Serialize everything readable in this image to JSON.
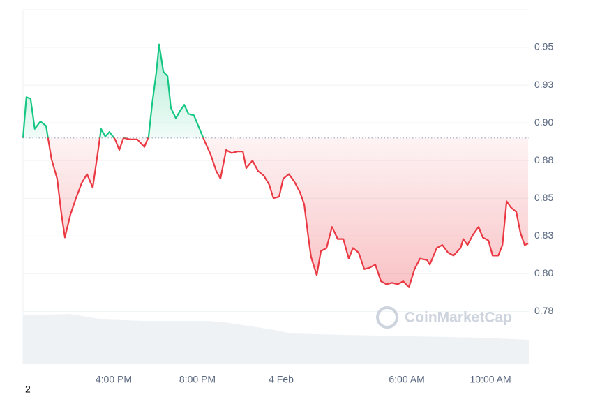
{
  "chart_data": {
    "type": "line",
    "x": [
      11.67,
      11.83,
      12.03,
      12.23,
      12.5,
      12.77,
      13.03,
      13.3,
      13.5,
      13.67,
      13.93,
      14.2,
      14.47,
      14.73,
      15.0,
      15.27,
      15.4,
      15.6,
      15.8,
      16.07,
      16.27,
      16.47,
      16.8,
      17.13,
      17.47,
      17.67,
      17.83,
      18.03,
      18.17,
      18.37,
      18.57,
      18.73,
      18.97,
      19.17,
      19.37,
      19.57,
      19.83,
      20.1,
      20.37,
      20.63,
      20.9,
      21.1,
      21.37,
      21.63,
      21.9,
      22.17,
      22.33,
      22.63,
      22.9,
      23.17,
      23.43,
      23.63,
      23.9,
      24.1,
      24.37,
      24.63,
      24.9,
      25.1,
      25.3,
      25.43,
      25.7,
      25.9,
      26.17,
      26.43,
      26.7,
      26.97,
      27.23,
      27.43,
      27.7,
      27.97,
      28.23,
      28.5,
      28.77,
      29.03,
      29.3,
      29.57,
      29.83,
      30.1,
      30.37,
      30.63,
      30.97,
      31.1,
      31.43,
      31.7,
      31.97,
      32.23,
      32.57,
      32.7,
      32.9,
      33.17,
      33.43,
      33.63,
      33.9,
      34.1,
      34.37,
      34.57,
      34.77,
      34.97,
      35.23,
      35.43,
      35.63,
      35.8
    ],
    "series": [
      {
        "values": [
          0.89,
          0.917,
          0.916,
          0.896,
          0.901,
          0.898,
          0.876,
          0.863,
          0.84,
          0.824,
          0.839,
          0.85,
          0.86,
          0.866,
          0.857,
          0.883,
          0.896,
          0.891,
          0.894,
          0.889,
          0.882,
          0.89,
          0.889,
          0.889,
          0.884,
          0.891,
          0.912,
          0.933,
          0.952,
          0.934,
          0.931,
          0.91,
          0.903,
          0.908,
          0.912,
          0.906,
          0.905,
          0.896,
          0.887,
          0.879,
          0.868,
          0.863,
          0.882,
          0.88,
          0.881,
          0.881,
          0.87,
          0.875,
          0.868,
          0.865,
          0.859,
          0.85,
          0.851,
          0.863,
          0.866,
          0.861,
          0.854,
          0.846,
          0.824,
          0.811,
          0.799,
          0.815,
          0.817,
          0.831,
          0.823,
          0.823,
          0.81,
          0.817,
          0.814,
          0.803,
          0.804,
          0.806,
          0.795,
          0.793,
          0.794,
          0.793,
          0.795,
          0.791,
          0.803,
          0.81,
          0.809,
          0.806,
          0.817,
          0.819,
          0.814,
          0.812,
          0.817,
          0.823,
          0.819,
          0.826,
          0.831,
          0.824,
          0.822,
          0.812,
          0.812,
          0.819,
          0.848,
          0.844,
          0.841,
          0.827,
          0.819,
          0.82
        ],
        "colors": {
          "up": "#16c784",
          "down": "#ea3943"
        }
      }
    ],
    "baseline": 0.89,
    "xlim": [
      11.67,
      35.83
    ],
    "ylim": [
      0.74,
      0.975
    ],
    "xticks": [
      {
        "value": 16,
        "label": "4:00 PM"
      },
      {
        "value": 20,
        "label": "8:00 PM"
      },
      {
        "value": 24,
        "label": "4 Feb"
      },
      {
        "value": 30,
        "label": "6:00 AM"
      },
      {
        "value": 34,
        "label": "10:00 AM"
      }
    ],
    "yticks": [
      {
        "value": 0.775,
        "label": "0.78"
      },
      {
        "value": 0.8,
        "label": "0.80"
      },
      {
        "value": 0.825,
        "label": "0.83"
      },
      0.85,
      {
        "value": 0.875,
        "label": "0.88"
      },
      {
        "value": 0.9,
        "label": "0.90"
      },
      {
        "value": 0.925,
        "label": "0.93"
      },
      0.95
    ],
    "grid": true,
    "volume": {
      "x": [
        11.67,
        13.9,
        15.5,
        17.5,
        20.5,
        21.3,
        23.5,
        24.5,
        27.0,
        30.3,
        33.6,
        35.83
      ],
      "values": [
        70,
        72,
        64,
        62,
        62,
        60,
        50,
        44,
        42,
        40,
        38,
        35
      ],
      "color": "#eff2f5"
    },
    "watermark": "CoinMarketCap"
  },
  "footer": "2"
}
